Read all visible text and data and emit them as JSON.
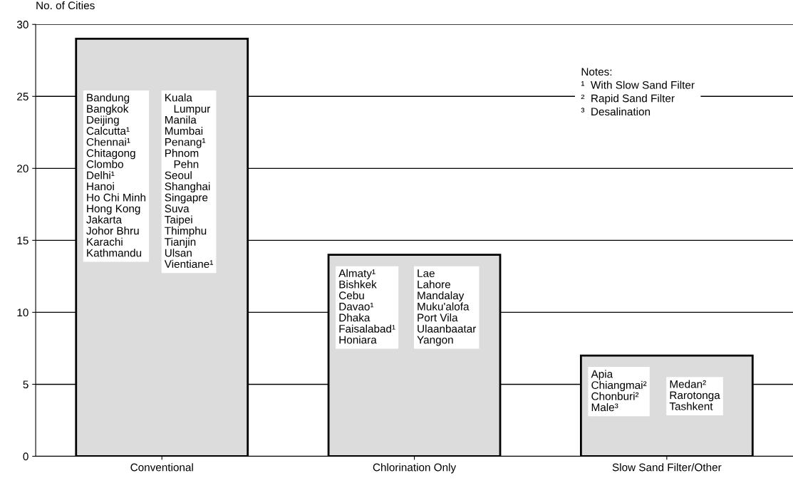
{
  "chart_data": {
    "type": "bar",
    "ylabel": "No. of Cities",
    "categories": [
      "Conventional",
      "Chlorination Only",
      "Slow Sand Filter/Other"
    ],
    "values": [
      29,
      14,
      7
    ],
    "color": "#dcdcdc",
    "ylim": [
      0,
      30
    ],
    "yticks": [
      0,
      5,
      10,
      15,
      20,
      25,
      30
    ],
    "grid": "y",
    "annotations": [
      "Bandung\nBangkok\nDeijing\nCalcutta¹\nChennai¹\nChitagong\nClombo\nDelhi¹\nHanoi\nHo Chi Minh\nHong Kong\nJakarta\nJohor Bhru\nKarachi\nKathmandu",
      "Kuala\n   Lumpur\nManila\nMumbai\nPenang¹\nPhnom\n   Pehn\nSeoul\nShanghai\nSingapre\nSuva\nTaipei\nThimphu\nTianjin\nUlsan\nVientiane¹",
      "Almaty¹\nBishkek\nCebu\nDavao¹\nDhaka\nFaisalabad¹\nHoniara",
      "Lae\nLahore\nMandalay\nMuku'alofa\nPort Vila\nUlaanbaatar\nYangon",
      "Apia\nChiangmai²\nChonburi²\nMale³",
      "Medan²\nRarotonga\nTashkent",
      "Notes:\n¹  With Slow Sand Filter\n²  Rapid Sand Filter\n³  Desalination"
    ]
  }
}
